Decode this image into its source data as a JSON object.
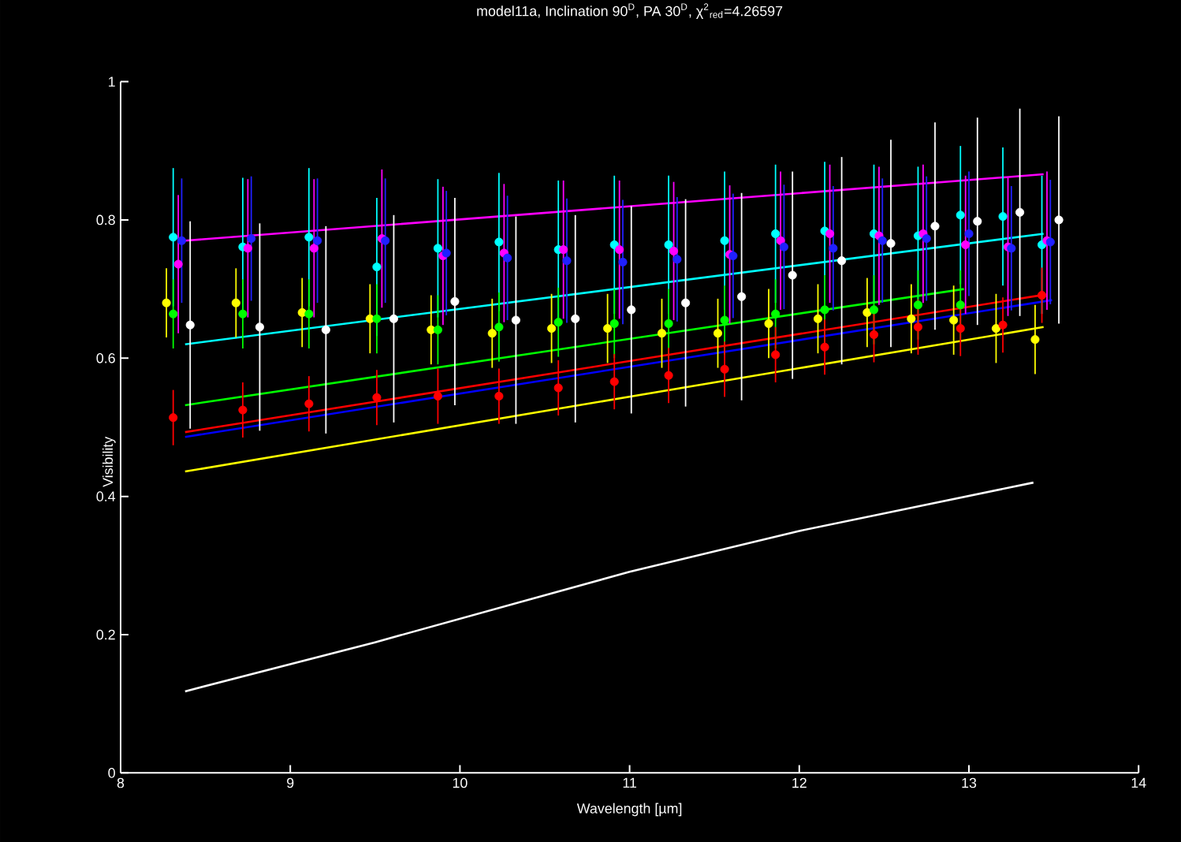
{
  "chart_data": {
    "type": "line",
    "title": "model11a, Inclination 90$^{D}$, PA 30$^{D}$, χ$^{2}$$_{red}$=4.26597",
    "xlabel": "Wavelength [µm]",
    "ylabel": "Visibility",
    "xlim": [
      8,
      14
    ],
    "ylim": [
      0,
      1
    ],
    "xticks": [
      8,
      9,
      10,
      11,
      12,
      13,
      14
    ],
    "yticks": [
      0,
      0.2,
      0.4,
      0.6,
      0.8,
      1
    ],
    "series": [
      {
        "color": "#ff00ff",
        "x": [
          8.38,
          13.44
        ],
        "values": [
          0.77,
          0.866
        ]
      },
      {
        "color": "#00ffff",
        "x": [
          8.38,
          13.44
        ],
        "values": [
          0.62,
          0.78
        ]
      },
      {
        "color": "#00ff00",
        "x": [
          8.38,
          12.97
        ],
        "values": [
          0.532,
          0.7
        ]
      },
      {
        "color": "#0000ff",
        "x": [
          8.38,
          13.49
        ],
        "values": [
          0.486,
          0.684
        ]
      },
      {
        "color": "#ff0000",
        "x": [
          8.38,
          13.45
        ],
        "values": [
          0.493,
          0.692
        ]
      },
      {
        "color": "#ffff00",
        "x": [
          8.38,
          13.44
        ],
        "values": [
          0.436,
          0.645
        ]
      },
      {
        "color": "#ffffff",
        "x": [
          8.38,
          9.5,
          11,
          12,
          13.38
        ],
        "values": [
          0.118,
          0.189,
          0.291,
          0.35,
          0.42
        ]
      },
      {
        "type": "scatter",
        "marker": "circle",
        "color": "#00ffff",
        "x": [
          8.31,
          8.72,
          9.11,
          9.51,
          9.87,
          10.23,
          10.58,
          10.91,
          11.23,
          11.56,
          11.86,
          12.15,
          12.44,
          12.7,
          12.95,
          13.2,
          13.43
        ],
        "values": [
          0.775,
          0.761,
          0.775,
          0.732,
          0.759,
          0.768,
          0.757,
          0.764,
          0.764,
          0.77,
          0.78,
          0.784,
          0.78,
          0.777,
          0.807,
          0.805,
          0.764
        ],
        "errors": [
          0.1,
          0.1,
          0.1,
          0.1,
          0.1,
          0.1,
          0.1,
          0.1,
          0.1,
          0.1,
          0.1,
          0.1,
          0.1,
          0.1,
          0.1,
          0.1,
          0.1
        ]
      },
      {
        "type": "scatter",
        "marker": "circle",
        "color": "#ff00ff",
        "x": [
          8.34,
          8.75,
          9.14,
          9.54,
          9.9,
          10.26,
          10.61,
          10.94,
          11.26,
          11.59,
          11.89,
          12.18,
          12.47,
          12.73,
          12.98,
          13.23,
          13.46
        ],
        "values": [
          0.736,
          0.759,
          0.759,
          0.773,
          0.748,
          0.752,
          0.757,
          0.757,
          0.755,
          0.75,
          0.77,
          0.78,
          0.777,
          0.78,
          0.764,
          0.761,
          0.77
        ],
        "errors": [
          0.1,
          0.1,
          0.1,
          0.1,
          0.1,
          0.1,
          0.1,
          0.1,
          0.1,
          0.1,
          0.1,
          0.1,
          0.1,
          0.1,
          0.1,
          0.1,
          0.1
        ]
      },
      {
        "type": "scatter",
        "marker": "circle",
        "color": "#2020ff",
        "x": [
          8.36,
          8.77,
          9.16,
          9.56,
          9.92,
          10.28,
          10.63,
          10.96,
          11.28,
          11.61,
          11.91,
          12.2,
          12.49,
          12.75,
          13.0,
          13.25,
          13.48
        ],
        "values": [
          0.77,
          0.773,
          0.77,
          0.77,
          0.752,
          0.745,
          0.741,
          0.739,
          0.743,
          0.748,
          0.761,
          0.759,
          0.77,
          0.773,
          0.78,
          0.759,
          0.768
        ],
        "errors": [
          0.09,
          0.09,
          0.09,
          0.09,
          0.09,
          0.09,
          0.09,
          0.09,
          0.09,
          0.09,
          0.09,
          0.09,
          0.09,
          0.09,
          0.09,
          0.09,
          0.09
        ]
      },
      {
        "type": "scatter",
        "marker": "circle",
        "color": "#ffffff",
        "x": [
          8.41,
          8.82,
          9.21,
          9.61,
          9.97,
          10.33,
          10.68,
          11.01,
          11.33,
          11.66,
          11.96,
          12.25,
          12.54,
          12.8,
          13.05,
          13.3,
          13.53
        ],
        "values": [
          0.648,
          0.645,
          0.641,
          0.657,
          0.682,
          0.655,
          0.657,
          0.67,
          0.68,
          0.689,
          0.72,
          0.741,
          0.766,
          0.791,
          0.798,
          0.811,
          0.8
        ],
        "errors": [
          0.15,
          0.15,
          0.15,
          0.15,
          0.15,
          0.15,
          0.15,
          0.15,
          0.15,
          0.15,
          0.15,
          0.15,
          0.15,
          0.15,
          0.15,
          0.15,
          0.15
        ]
      },
      {
        "type": "scatter",
        "marker": "circle",
        "color": "#ffff00",
        "x": [
          8.27,
          8.68,
          9.07,
          9.47,
          9.83,
          10.19,
          10.54,
          10.87,
          11.19,
          11.52,
          11.82,
          12.11,
          12.4,
          12.66,
          12.91,
          13.16,
          13.39
        ],
        "values": [
          0.68,
          0.68,
          0.666,
          0.657,
          0.641,
          0.636,
          0.643,
          0.643,
          0.636,
          0.636,
          0.65,
          0.657,
          0.666,
          0.657,
          0.655,
          0.643,
          0.627
        ],
        "errors": [
          0.05,
          0.05,
          0.05,
          0.05,
          0.05,
          0.05,
          0.05,
          0.05,
          0.05,
          0.05,
          0.05,
          0.05,
          0.05,
          0.05,
          0.05,
          0.05,
          0.05
        ]
      },
      {
        "type": "scatter",
        "marker": "circle",
        "color": "#00ff00",
        "x": [
          8.31,
          8.72,
          9.11,
          9.51,
          9.87,
          10.23,
          10.58,
          10.91,
          11.23,
          11.56,
          11.86,
          12.15,
          12.44,
          12.7,
          12.95
        ],
        "values": [
          0.664,
          0.664,
          0.664,
          0.657,
          0.641,
          0.645,
          0.652,
          0.65,
          0.65,
          0.655,
          0.664,
          0.67,
          0.67,
          0.677,
          0.677
        ],
        "errors": [
          0.05,
          0.05,
          0.05,
          0.05,
          0.05,
          0.05,
          0.05,
          0.05,
          0.05,
          0.05,
          0.05,
          0.05,
          0.05,
          0.05,
          0.05
        ]
      },
      {
        "type": "scatter",
        "marker": "circle",
        "color": "#ff0000",
        "x": [
          8.31,
          8.72,
          9.11,
          9.51,
          9.87,
          10.23,
          10.58,
          10.91,
          11.23,
          11.56,
          11.86,
          12.15,
          12.44,
          12.7,
          12.95,
          13.2,
          13.43
        ],
        "values": [
          0.514,
          0.525,
          0.534,
          0.543,
          0.545,
          0.545,
          0.557,
          0.566,
          0.575,
          0.584,
          0.605,
          0.616,
          0.634,
          0.645,
          0.643,
          0.648,
          0.691
        ],
        "errors": [
          0.04,
          0.04,
          0.04,
          0.04,
          0.04,
          0.04,
          0.04,
          0.04,
          0.04,
          0.04,
          0.04,
          0.04,
          0.04,
          0.04,
          0.04,
          0.04,
          0.04
        ]
      }
    ]
  }
}
